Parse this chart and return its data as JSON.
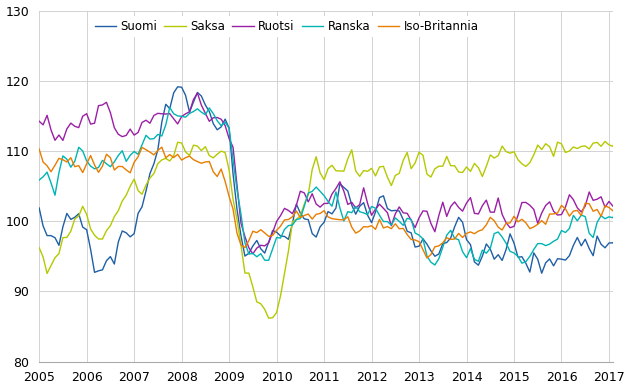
{
  "title": "",
  "legend_entries": [
    "Suomi",
    "Saksa",
    "Ruotsi",
    "Ranska",
    "Iso-Britannia"
  ],
  "colors": {
    "Suomi": "#1f5fa6",
    "Saksa": "#b5c900",
    "Ruotsi": "#9b1fa6",
    "Ranska": "#00b4b4",
    "Iso-Britannia": "#e87d00"
  },
  "ylim": [
    80,
    130
  ],
  "yticks": [
    80,
    90,
    100,
    110,
    120,
    130
  ],
  "linewidth": 1.0,
  "series": {
    "Suomi": [
      101.0,
      99.0,
      97.5,
      96.0,
      96.5,
      97.0,
      98.0,
      99.0,
      100.0,
      100.5,
      101.0,
      100.0,
      99.0,
      97.5,
      96.0,
      95.0,
      94.5,
      95.0,
      95.5,
      96.0,
      97.0,
      97.5,
      98.5,
      99.0,
      100.0,
      101.5,
      103.0,
      105.0,
      107.0,
      109.0,
      111.0,
      113.0,
      115.0,
      117.0,
      118.5,
      119.5,
      120.0,
      119.5,
      118.5,
      118.0,
      117.5,
      117.0,
      116.5,
      116.0,
      115.5,
      115.0,
      114.5,
      114.0,
      112.0,
      108.0,
      103.0,
      98.0,
      96.0,
      95.5,
      95.0,
      95.5,
      96.0,
      96.5,
      97.0,
      97.5,
      98.0,
      98.5,
      99.0,
      99.5,
      100.0,
      100.5,
      100.0,
      99.5,
      99.0,
      98.5,
      98.0,
      97.5,
      98.5,
      100.0,
      102.0,
      103.5,
      104.5,
      105.0,
      104.5,
      104.0,
      103.0,
      102.0,
      101.0,
      100.0,
      101.0,
      102.5,
      103.0,
      102.5,
      102.0,
      101.5,
      101.0,
      100.5,
      100.0,
      99.5,
      99.0,
      98.0,
      97.5,
      97.0,
      96.5,
      96.0,
      96.5,
      97.0,
      97.5,
      98.0,
      98.5,
      99.0,
      98.5,
      98.0,
      97.0,
      96.5,
      96.0,
      95.5,
      95.0,
      94.5,
      94.0,
      94.5,
      95.0,
      95.5,
      96.0,
      96.5,
      95.5,
      95.0,
      94.5,
      94.0,
      93.5,
      93.0,
      93.5,
      94.0,
      94.5,
      95.0,
      95.5,
      96.0,
      95.5,
      95.0,
      95.5,
      96.0,
      97.0,
      97.5,
      97.0,
      96.5,
      96.0,
      96.5,
      97.0,
      97.5,
      96.5,
      96.0,
      96.5,
      97.0,
      97.5,
      97.5,
      97.0,
      96.5,
      96.0,
      96.5,
      97.0,
      97.5
    ],
    "Saksa": [
      94.0,
      93.5,
      93.0,
      94.0,
      95.0,
      95.5,
      96.5,
      97.5,
      98.5,
      99.5,
      100.0,
      100.5,
      100.0,
      99.5,
      99.0,
      98.5,
      98.0,
      98.5,
      99.0,
      100.0,
      101.0,
      102.0,
      103.0,
      103.5,
      104.0,
      104.5,
      105.0,
      105.5,
      106.0,
      106.5,
      107.5,
      108.5,
      109.5,
      110.0,
      110.5,
      111.0,
      110.5,
      110.5,
      110.0,
      110.5,
      111.0,
      110.5,
      110.5,
      110.0,
      109.5,
      109.0,
      109.0,
      108.5,
      107.5,
      104.5,
      100.5,
      96.0,
      92.0,
      90.0,
      88.0,
      87.5,
      87.0,
      86.5,
      86.0,
      86.0,
      87.0,
      90.0,
      93.0,
      96.0,
      98.5,
      100.0,
      101.5,
      103.0,
      105.0,
      107.0,
      108.5,
      107.5,
      107.0,
      107.5,
      108.0,
      107.5,
      107.0,
      107.5,
      108.0,
      108.5,
      108.0,
      107.5,
      107.5,
      107.0,
      107.5,
      107.0,
      107.5,
      107.0,
      106.5,
      106.0,
      107.0,
      107.5,
      108.0,
      108.5,
      108.0,
      108.5,
      108.0,
      107.5,
      107.0,
      107.5,
      107.0,
      107.5,
      108.0,
      108.5,
      108.0,
      108.5,
      109.0,
      109.5,
      108.5,
      108.0,
      108.0,
      107.5,
      107.5,
      108.0,
      108.5,
      109.0,
      109.5,
      110.0,
      110.5,
      110.0,
      109.5,
      109.0,
      108.5,
      108.0,
      108.5,
      109.0,
      109.5,
      110.0,
      110.5,
      110.5,
      110.5,
      111.0,
      110.5,
      110.0,
      110.5,
      111.0,
      111.0,
      110.5,
      110.0,
      110.5,
      111.0,
      110.5,
      110.0,
      110.5,
      111.0,
      111.5,
      112.0,
      111.5,
      111.5,
      112.0,
      112.0,
      111.5,
      111.5,
      112.0,
      111.5,
      111.5
    ],
    "Ruotsi": [
      113.0,
      112.5,
      113.5,
      112.0,
      111.0,
      112.0,
      111.5,
      113.0,
      114.0,
      113.0,
      113.5,
      114.0,
      114.5,
      115.5,
      114.0,
      115.0,
      115.5,
      116.0,
      115.0,
      114.0,
      113.0,
      112.5,
      112.0,
      112.5,
      113.0,
      113.5,
      114.0,
      114.5,
      115.0,
      115.5,
      115.0,
      115.5,
      116.0,
      115.5,
      115.5,
      116.0,
      116.5,
      116.0,
      115.5,
      116.0,
      116.5,
      116.0,
      115.5,
      115.0,
      115.5,
      115.0,
      114.5,
      114.0,
      112.0,
      109.0,
      104.0,
      99.5,
      97.0,
      96.0,
      95.5,
      96.0,
      96.5,
      97.0,
      97.5,
      98.0,
      98.5,
      99.0,
      99.5,
      100.5,
      101.0,
      101.5,
      102.5,
      103.0,
      104.0,
      105.0,
      104.5,
      104.0,
      103.5,
      103.0,
      103.5,
      103.0,
      103.5,
      104.0,
      103.5,
      103.0,
      102.5,
      102.0,
      102.5,
      102.0,
      102.5,
      102.0,
      101.5,
      101.0,
      101.5,
      101.0,
      101.5,
      102.0,
      101.5,
      101.0,
      100.5,
      100.0,
      100.5,
      101.0,
      100.5,
      100.0,
      100.5,
      101.0,
      101.5,
      101.0,
      101.5,
      101.5,
      101.0,
      100.5,
      101.0,
      100.5,
      100.0,
      100.5,
      101.0,
      101.5,
      101.0,
      101.5,
      102.0,
      101.5,
      102.0,
      101.5,
      101.0,
      100.5,
      101.0,
      101.5,
      101.0,
      101.5,
      102.0,
      102.5,
      102.0,
      102.5,
      103.0,
      102.5,
      102.0,
      102.5,
      103.0,
      103.5,
      103.0,
      102.5,
      103.0,
      103.5,
      103.0,
      103.5,
      103.5,
      103.0,
      103.5,
      103.0,
      103.5,
      104.0,
      103.5,
      103.0,
      103.5,
      103.0,
      103.5,
      103.5,
      103.0,
      103.5
    ],
    "Ranska": [
      106.5,
      107.0,
      107.5,
      107.0,
      106.0,
      107.0,
      107.5,
      108.0,
      107.5,
      108.0,
      108.5,
      107.5,
      108.0,
      108.5,
      109.0,
      108.5,
      109.0,
      109.5,
      109.0,
      109.5,
      109.0,
      108.5,
      108.0,
      108.5,
      109.0,
      110.0,
      110.5,
      111.0,
      112.0,
      112.5,
      113.0,
      113.5,
      114.0,
      114.5,
      115.0,
      115.5,
      115.0,
      115.5,
      116.0,
      116.5,
      116.5,
      116.0,
      115.5,
      116.0,
      115.5,
      115.0,
      114.5,
      114.0,
      112.5,
      109.0,
      105.0,
      100.5,
      97.5,
      96.0,
      95.5,
      95.0,
      95.5,
      96.0,
      96.5,
      97.0,
      97.5,
      98.0,
      99.0,
      100.0,
      100.5,
      101.0,
      101.5,
      102.5,
      104.5,
      105.0,
      104.5,
      104.0,
      103.5,
      103.0,
      102.5,
      103.0,
      102.5,
      102.0,
      101.5,
      101.0,
      102.0,
      101.5,
      101.5,
      101.0,
      101.5,
      101.0,
      100.5,
      100.0,
      100.5,
      100.0,
      100.5,
      100.0,
      99.5,
      99.0,
      98.5,
      98.0,
      97.5,
      97.0,
      96.5,
      96.0,
      95.5,
      96.0,
      96.5,
      97.0,
      97.5,
      97.5,
      97.0,
      96.5,
      96.0,
      95.5,
      95.0,
      94.5,
      95.0,
      95.5,
      96.0,
      96.5,
      97.0,
      97.5,
      97.0,
      96.5,
      95.5,
      95.0,
      94.5,
      94.5,
      95.0,
      95.5,
      96.0,
      96.5,
      97.0,
      97.5,
      98.0,
      97.5,
      98.0,
      98.5,
      99.0,
      99.5,
      99.0,
      99.5,
      100.0,
      99.5,
      99.5,
      100.0,
      99.5,
      100.0,
      100.5,
      101.0,
      101.5,
      101.0,
      101.5,
      101.5,
      101.0,
      101.5,
      102.0,
      101.5,
      101.5,
      102.0
    ],
    "Iso-Britannia": [
      109.0,
      108.0,
      108.5,
      107.5,
      108.0,
      108.5,
      109.0,
      108.5,
      108.5,
      108.0,
      108.5,
      108.0,
      108.5,
      109.0,
      108.5,
      108.0,
      108.5,
      109.0,
      108.5,
      108.0,
      108.5,
      108.0,
      108.5,
      108.0,
      108.5,
      109.0,
      109.5,
      109.0,
      109.5,
      110.0,
      109.5,
      109.5,
      109.0,
      109.5,
      109.0,
      109.5,
      109.0,
      109.5,
      109.5,
      109.0,
      109.0,
      108.5,
      108.5,
      108.0,
      107.5,
      107.0,
      106.5,
      106.0,
      104.5,
      102.0,
      99.0,
      97.5,
      97.0,
      97.0,
      97.5,
      97.5,
      98.0,
      98.5,
      98.5,
      98.0,
      99.0,
      99.5,
      100.0,
      100.5,
      100.5,
      101.0,
      100.5,
      100.5,
      101.0,
      100.5,
      100.5,
      101.0,
      101.5,
      101.0,
      100.5,
      100.0,
      100.5,
      100.0,
      100.5,
      100.0,
      99.5,
      99.0,
      99.5,
      99.0,
      99.5,
      99.0,
      99.5,
      99.0,
      99.5,
      99.0,
      99.5,
      98.5,
      98.5,
      98.0,
      97.5,
      97.5,
      97.0,
      96.5,
      96.0,
      95.5,
      96.0,
      96.5,
      97.0,
      97.5,
      97.5,
      98.0,
      98.5,
      98.0,
      98.5,
      99.0,
      98.5,
      98.0,
      98.5,
      99.0,
      99.5,
      99.0,
      99.5,
      100.0,
      100.5,
      100.0,
      100.5,
      100.0,
      100.5,
      100.0,
      99.5,
      100.0,
      100.5,
      101.0,
      100.5,
      101.0,
      101.0,
      100.5,
      101.0,
      101.5,
      101.0,
      101.5,
      101.5,
      101.0,
      101.5,
      101.5,
      101.0,
      101.5,
      101.0,
      101.5,
      101.5,
      101.0,
      101.5,
      101.0,
      101.5,
      101.5,
      101.0,
      101.5,
      101.0,
      101.5,
      101.0,
      101.5
    ]
  }
}
